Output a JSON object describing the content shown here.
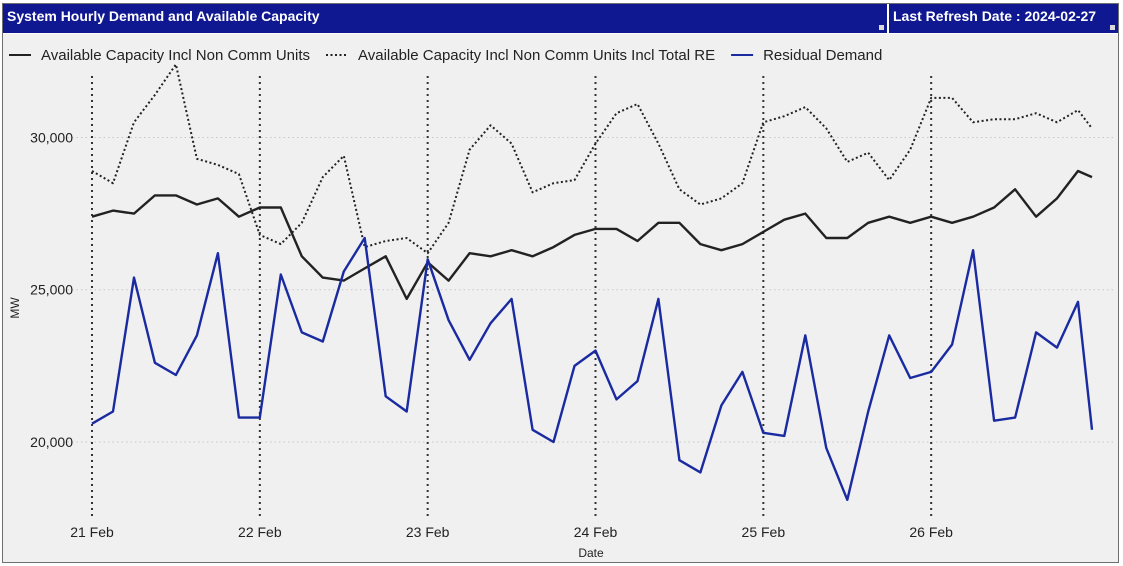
{
  "header": {
    "title": "System Hourly Demand and Available Capacity",
    "refresh_label": "Last Refresh Date : 2024-02-27"
  },
  "chart_data": {
    "type": "line",
    "title": "System Hourly Demand and Available Capacity",
    "xlabel": "Date",
    "ylabel": "MW",
    "ylim": [
      17700,
      33400
    ],
    "yticks": [
      20000,
      25000,
      30000
    ],
    "ytick_labels": [
      "20,000",
      "25,000",
      "30,000"
    ],
    "xlim": [
      0,
      144
    ],
    "xticks": [
      0,
      24,
      48,
      72,
      96,
      120
    ],
    "categories": [
      "21 Feb",
      "22 Feb",
      "23 Feb",
      "24 Feb",
      "25 Feb",
      "26 Feb"
    ],
    "x_unit": "hours since 21 Feb 00:00",
    "legend_position": "top",
    "grid": "dotted vertical and horizontal",
    "series": [
      {
        "name": "Available Capacity Incl Non Comm Units",
        "color": "#222222",
        "style": "solid",
        "x": [
          0,
          3,
          6,
          9,
          12,
          15,
          18,
          21,
          24,
          27,
          30,
          33,
          36,
          39,
          42,
          45,
          48,
          51,
          54,
          57,
          60,
          63,
          66,
          69,
          72,
          75,
          78,
          81,
          84,
          87,
          90,
          93,
          96,
          99,
          102,
          105,
          108,
          111,
          114,
          117,
          120,
          123,
          126,
          129,
          132,
          135,
          138,
          141,
          143
        ],
        "values": [
          27400,
          27600,
          27500,
          28100,
          28100,
          27800,
          28000,
          27400,
          27700,
          27700,
          26100,
          25400,
          25300,
          25700,
          26100,
          24700,
          25900,
          25300,
          26200,
          26100,
          26300,
          26100,
          26400,
          26800,
          27000,
          27000,
          26600,
          27200,
          27200,
          26500,
          26300,
          26500,
          26900,
          27300,
          27500,
          26700,
          26700,
          27200,
          27400,
          27200,
          27400,
          27200,
          27400,
          27700,
          28300,
          27400,
          28000,
          28900,
          28700
        ]
      },
      {
        "name": "Available Capacity Incl Non Comm Units Incl Total RE",
        "color": "#222222",
        "style": "dotted",
        "x": [
          0,
          3,
          6,
          9,
          12,
          15,
          18,
          21,
          24,
          27,
          30,
          33,
          36,
          39,
          42,
          45,
          48,
          51,
          54,
          57,
          60,
          63,
          66,
          69,
          72,
          75,
          78,
          81,
          84,
          87,
          90,
          93,
          96,
          99,
          102,
          105,
          108,
          111,
          114,
          117,
          120,
          123,
          126,
          129,
          132,
          135,
          138,
          141,
          143
        ],
        "values": [
          28900,
          28500,
          30500,
          31400,
          32400,
          29300,
          29100,
          28800,
          26800,
          26500,
          27200,
          28700,
          29400,
          26400,
          26600,
          26700,
          26200,
          27200,
          29600,
          30400,
          29800,
          28200,
          28500,
          28600,
          29800,
          30800,
          31100,
          29800,
          28300,
          27800,
          28000,
          28500,
          30500,
          30700,
          31000,
          30300,
          29200,
          29500,
          28600,
          29600,
          31300,
          31300,
          30500,
          30600,
          30600,
          30800,
          30500,
          30900,
          30300
        ]
      },
      {
        "name": "Residual Demand",
        "color": "#1a2aa0",
        "style": "solid",
        "x": [
          0,
          3,
          6,
          9,
          12,
          15,
          18,
          21,
          24,
          27,
          30,
          33,
          36,
          39,
          42,
          45,
          48,
          51,
          54,
          57,
          60,
          63,
          66,
          69,
          72,
          75,
          78,
          81,
          84,
          87,
          90,
          93,
          96,
          99,
          102,
          105,
          108,
          111,
          114,
          117,
          120,
          123,
          126,
          129,
          132,
          135,
          138,
          141,
          143
        ],
        "values": [
          20600,
          21000,
          25400,
          22600,
          22200,
          23500,
          26200,
          20800,
          20800,
          25500,
          23600,
          23300,
          25600,
          26700,
          21500,
          21000,
          26000,
          24000,
          22700,
          23900,
          24700,
          20400,
          20000,
          22500,
          23000,
          21400,
          22000,
          24700,
          19400,
          19000,
          21200,
          22300,
          20300,
          20200,
          23500,
          19800,
          18100,
          21000,
          23500,
          22100,
          22300,
          23200,
          26300,
          20700,
          20800,
          23600,
          23100,
          24600,
          20400
        ]
      }
    ]
  }
}
